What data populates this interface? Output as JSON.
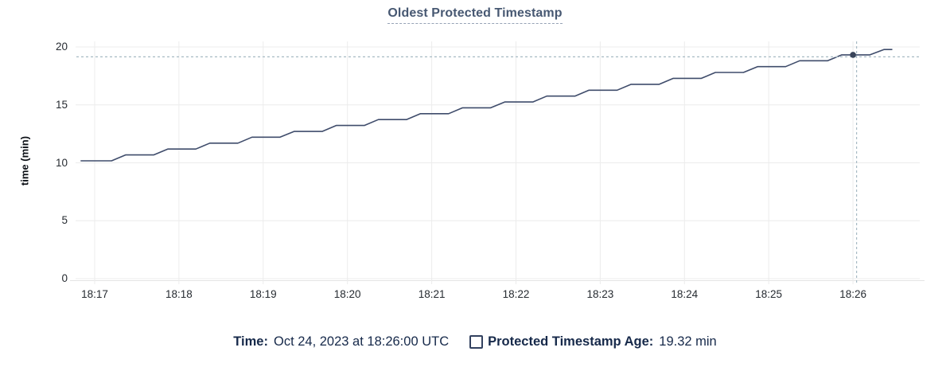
{
  "header": {
    "title": "Oldest Protected Timestamp"
  },
  "legend": {
    "time_key": "Time:",
    "time_value": "Oct 24, 2023 at 18:26:00 UTC",
    "series_key": "Protected Timestamp Age:",
    "series_value": "19.32 min"
  },
  "colors": {
    "title": "#475872",
    "series_line": "#3f4c6b",
    "highlight_point": "#39445a",
    "crosshair": "#a7bac4",
    "gridline": "#ececec",
    "axis_line": "#e4e4e4",
    "tick_label": "#262b31",
    "legend_text": "#16294a"
  },
  "chart_data": {
    "type": "line",
    "title": "Oldest Protected Timestamp",
    "xlabel": "",
    "ylabel": "time (min)",
    "ylim": [
      0,
      20
    ],
    "y_ticks": [
      0,
      5,
      10,
      15,
      20
    ],
    "x_ticks": [
      "18:17",
      "18:18",
      "18:19",
      "18:20",
      "18:21",
      "18:22",
      "18:23",
      "18:24",
      "18:25",
      "18:26"
    ],
    "x_tick_minutes": [
      0,
      1,
      2,
      3,
      4,
      5,
      6,
      7,
      8,
      9
    ],
    "grid": true,
    "legend_position": "bottom",
    "series": [
      {
        "name": "Protected Timestamp Age",
        "units": "min",
        "points_t_seconds_after_1817_and_minutes": [
          [
            -10,
            10.17
          ],
          [
            12,
            10.17
          ],
          [
            22,
            10.68
          ],
          [
            42,
            10.68
          ],
          [
            52,
            11.19
          ],
          [
            72,
            11.19
          ],
          [
            82,
            11.7
          ],
          [
            102,
            11.7
          ],
          [
            112,
            12.21
          ],
          [
            132,
            12.21
          ],
          [
            142,
            12.71
          ],
          [
            162,
            12.71
          ],
          [
            172,
            13.22
          ],
          [
            192,
            13.22
          ],
          [
            202,
            13.73
          ],
          [
            222,
            13.73
          ],
          [
            232,
            14.24
          ],
          [
            252,
            14.24
          ],
          [
            262,
            14.75
          ],
          [
            282,
            14.75
          ],
          [
            292,
            15.25
          ],
          [
            312,
            15.25
          ],
          [
            322,
            15.76
          ],
          [
            342,
            15.76
          ],
          [
            352,
            16.27
          ],
          [
            372,
            16.27
          ],
          [
            382,
            16.78
          ],
          [
            402,
            16.78
          ],
          [
            412,
            17.29
          ],
          [
            432,
            17.29
          ],
          [
            442,
            17.8
          ],
          [
            462,
            17.8
          ],
          [
            472,
            18.3
          ],
          [
            492,
            18.3
          ],
          [
            502,
            18.81
          ],
          [
            522,
            18.81
          ],
          [
            532,
            19.32
          ],
          [
            552,
            19.32
          ],
          [
            562,
            19.78
          ],
          [
            568,
            19.78
          ]
        ]
      }
    ],
    "highlight": {
      "t_seconds_after_1817": 540,
      "value_min": 19.32,
      "time_label": "Oct 24, 2023 at 18:26:00 UTC",
      "value_label": "19.32 min",
      "crosshair": true
    }
  }
}
